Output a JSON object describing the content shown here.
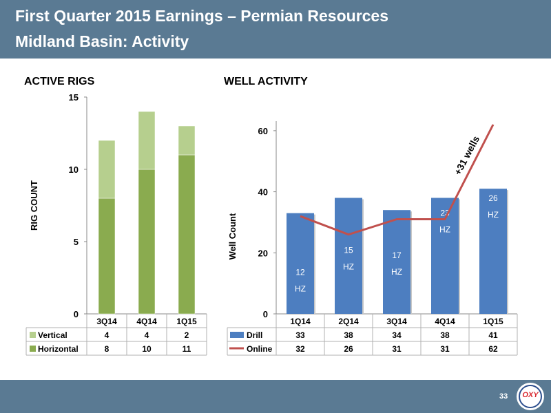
{
  "header": {
    "title_line1": "First Quarter 2015 Earnings – Permian Resources",
    "title_line2": "Midland Basin: Activity"
  },
  "footer": {
    "page_number": "33",
    "logo_text": "OXY"
  },
  "colors": {
    "header_bg": "#5a7a93",
    "vertical": "#b6cf8e",
    "horizontal": "#8aab4f",
    "drill": "#4d7ec0",
    "online": "#c0504d"
  },
  "chart_data": [
    {
      "type": "bar",
      "stacked": true,
      "title": "ACTIVE RIGS",
      "ylabel": "RIG COUNT",
      "ylim": [
        0,
        15
      ],
      "yticks": [
        0,
        5,
        10,
        15
      ],
      "categories": [
        "3Q14",
        "4Q14",
        "1Q15"
      ],
      "series": [
        {
          "name": "Vertical",
          "values": [
            4,
            4,
            2
          ],
          "color": "#b6cf8e"
        },
        {
          "name": "Horizontal",
          "values": [
            8,
            10,
            11
          ],
          "color": "#8aab4f"
        }
      ],
      "data_table": true,
      "grid": false
    },
    {
      "type": "bar",
      "title": "WELL ACTIVITY",
      "ylabel": "Well Count",
      "ylim": [
        0,
        62
      ],
      "yticks": [
        0,
        20,
        40,
        60
      ],
      "categories": [
        "1Q14",
        "2Q14",
        "3Q14",
        "4Q14",
        "1Q15"
      ],
      "series": [
        {
          "name": "Drill",
          "type": "bar",
          "values": [
            33,
            38,
            34,
            38,
            41
          ],
          "color": "#4d7ec0"
        },
        {
          "name": "Online",
          "type": "line",
          "values": [
            32,
            26,
            31,
            31,
            62
          ],
          "color": "#c0504d"
        }
      ],
      "bar_labels": [
        {
          "number": "12",
          "unit": "HZ"
        },
        {
          "number": "15",
          "unit": "HZ"
        },
        {
          "number": "17",
          "unit": "HZ"
        },
        {
          "number": "23",
          "unit": "HZ"
        },
        {
          "number": "26",
          "unit": "HZ"
        }
      ],
      "annotation": "+31 wells",
      "data_table": true,
      "grid": false
    }
  ]
}
